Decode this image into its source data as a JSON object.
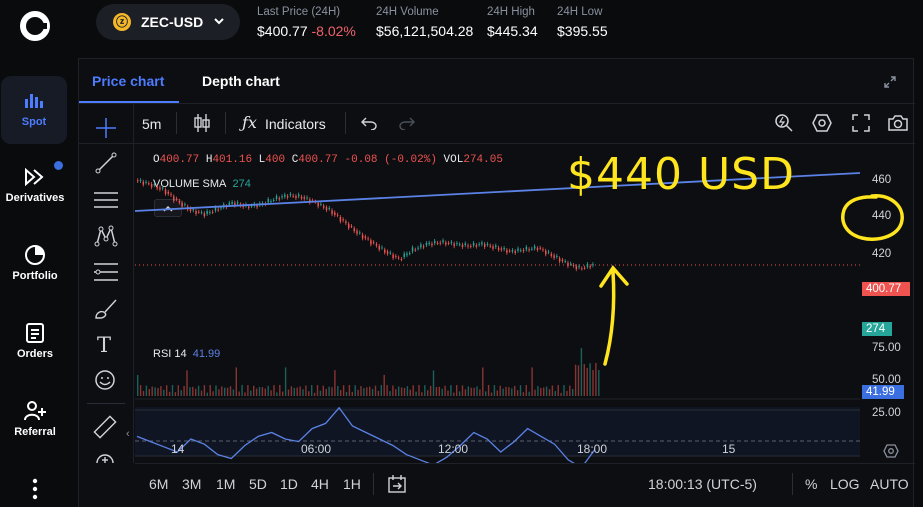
{
  "nav": {
    "logo": "coinbase-logo",
    "items": [
      {
        "label": "Spot",
        "icon": "spot-chart-icon",
        "active": true
      },
      {
        "label": "Derivatives",
        "icon": "derivatives-icon"
      },
      {
        "label": "Portfolio",
        "icon": "pie-chart-icon"
      },
      {
        "label": "Orders",
        "icon": "document-icon"
      },
      {
        "label": "Referral",
        "icon": "add-user-icon"
      }
    ],
    "more": "more-vertical-icon"
  },
  "header": {
    "pair": "ZEC-USD",
    "coin_symbol": "ⓩ",
    "stats": [
      {
        "label": "Last Price (24H)",
        "value": "$400.77",
        "change": "-8.02%"
      },
      {
        "label": "24H Volume",
        "value": "$56,121,504.28"
      },
      {
        "label": "24H High",
        "value": "$445.34"
      },
      {
        "label": "24H Low",
        "value": "$395.55"
      }
    ]
  },
  "tabs": {
    "price": "Price chart",
    "depth": "Depth chart"
  },
  "toolbar": {
    "interval": "5m",
    "indicators": "Indicators"
  },
  "legend": {
    "o_label": "O",
    "o": "400.77",
    "h_label": "H",
    "h": "401.16",
    "l_label": "L",
    "l": "400",
    "c_label": "C",
    "c": "400.77",
    "chg": "-0.08 (-0.02%)",
    "vol_label": "VOL",
    "vol": "274.05",
    "vsma_label": "VOLUME SMA",
    "vsma": "274",
    "rsi_label": "RSI 14",
    "rsi": "41.99"
  },
  "price_axis": [
    "460",
    "440",
    "420"
  ],
  "last_price_tag": "400.77",
  "volume_tag": "274",
  "rsi_axis": [
    "75.00",
    "50.00",
    "25.00"
  ],
  "rsi_tag": "41.99",
  "time_axis": [
    "14",
    "06:00",
    "12:00",
    "18:00",
    "15"
  ],
  "ranges": [
    "6M",
    "3M",
    "1M",
    "5D",
    "1D",
    "4H",
    "1H"
  ],
  "footer": {
    "clock": "18:00:13 (UTC-5)",
    "pct": "%",
    "log": "LOG",
    "auto": "AUTO"
  },
  "annotation": "$440 USD",
  "colors": {
    "accent": "#4d7cff",
    "up": "#26a69a",
    "down": "#ef5350",
    "annotation": "#ffe51e",
    "trendline": "#5b82e6"
  },
  "chart_data": {
    "type": "line",
    "series": [
      {
        "name": "",
        "values": [
          446,
          444,
          441,
          435,
          430,
          428,
          431,
          434,
          432,
          433,
          436,
          438,
          437,
          434,
          430,
          424,
          418,
          413,
          408,
          404,
          409,
          412,
          413,
          412,
          411,
          412,
          410,
          408,
          409,
          410,
          406,
          402,
          399,
          401
        ]
      }
    ],
    "rsi": [
      52,
      48,
      44,
      40,
      50,
      46,
      38,
      35,
      45,
      52,
      55,
      50,
      48,
      58,
      62,
      74,
      60,
      55,
      50,
      45,
      38,
      34,
      30,
      36,
      45,
      55,
      50,
      40,
      48,
      58,
      52,
      46,
      34,
      28,
      42
    ]
  }
}
